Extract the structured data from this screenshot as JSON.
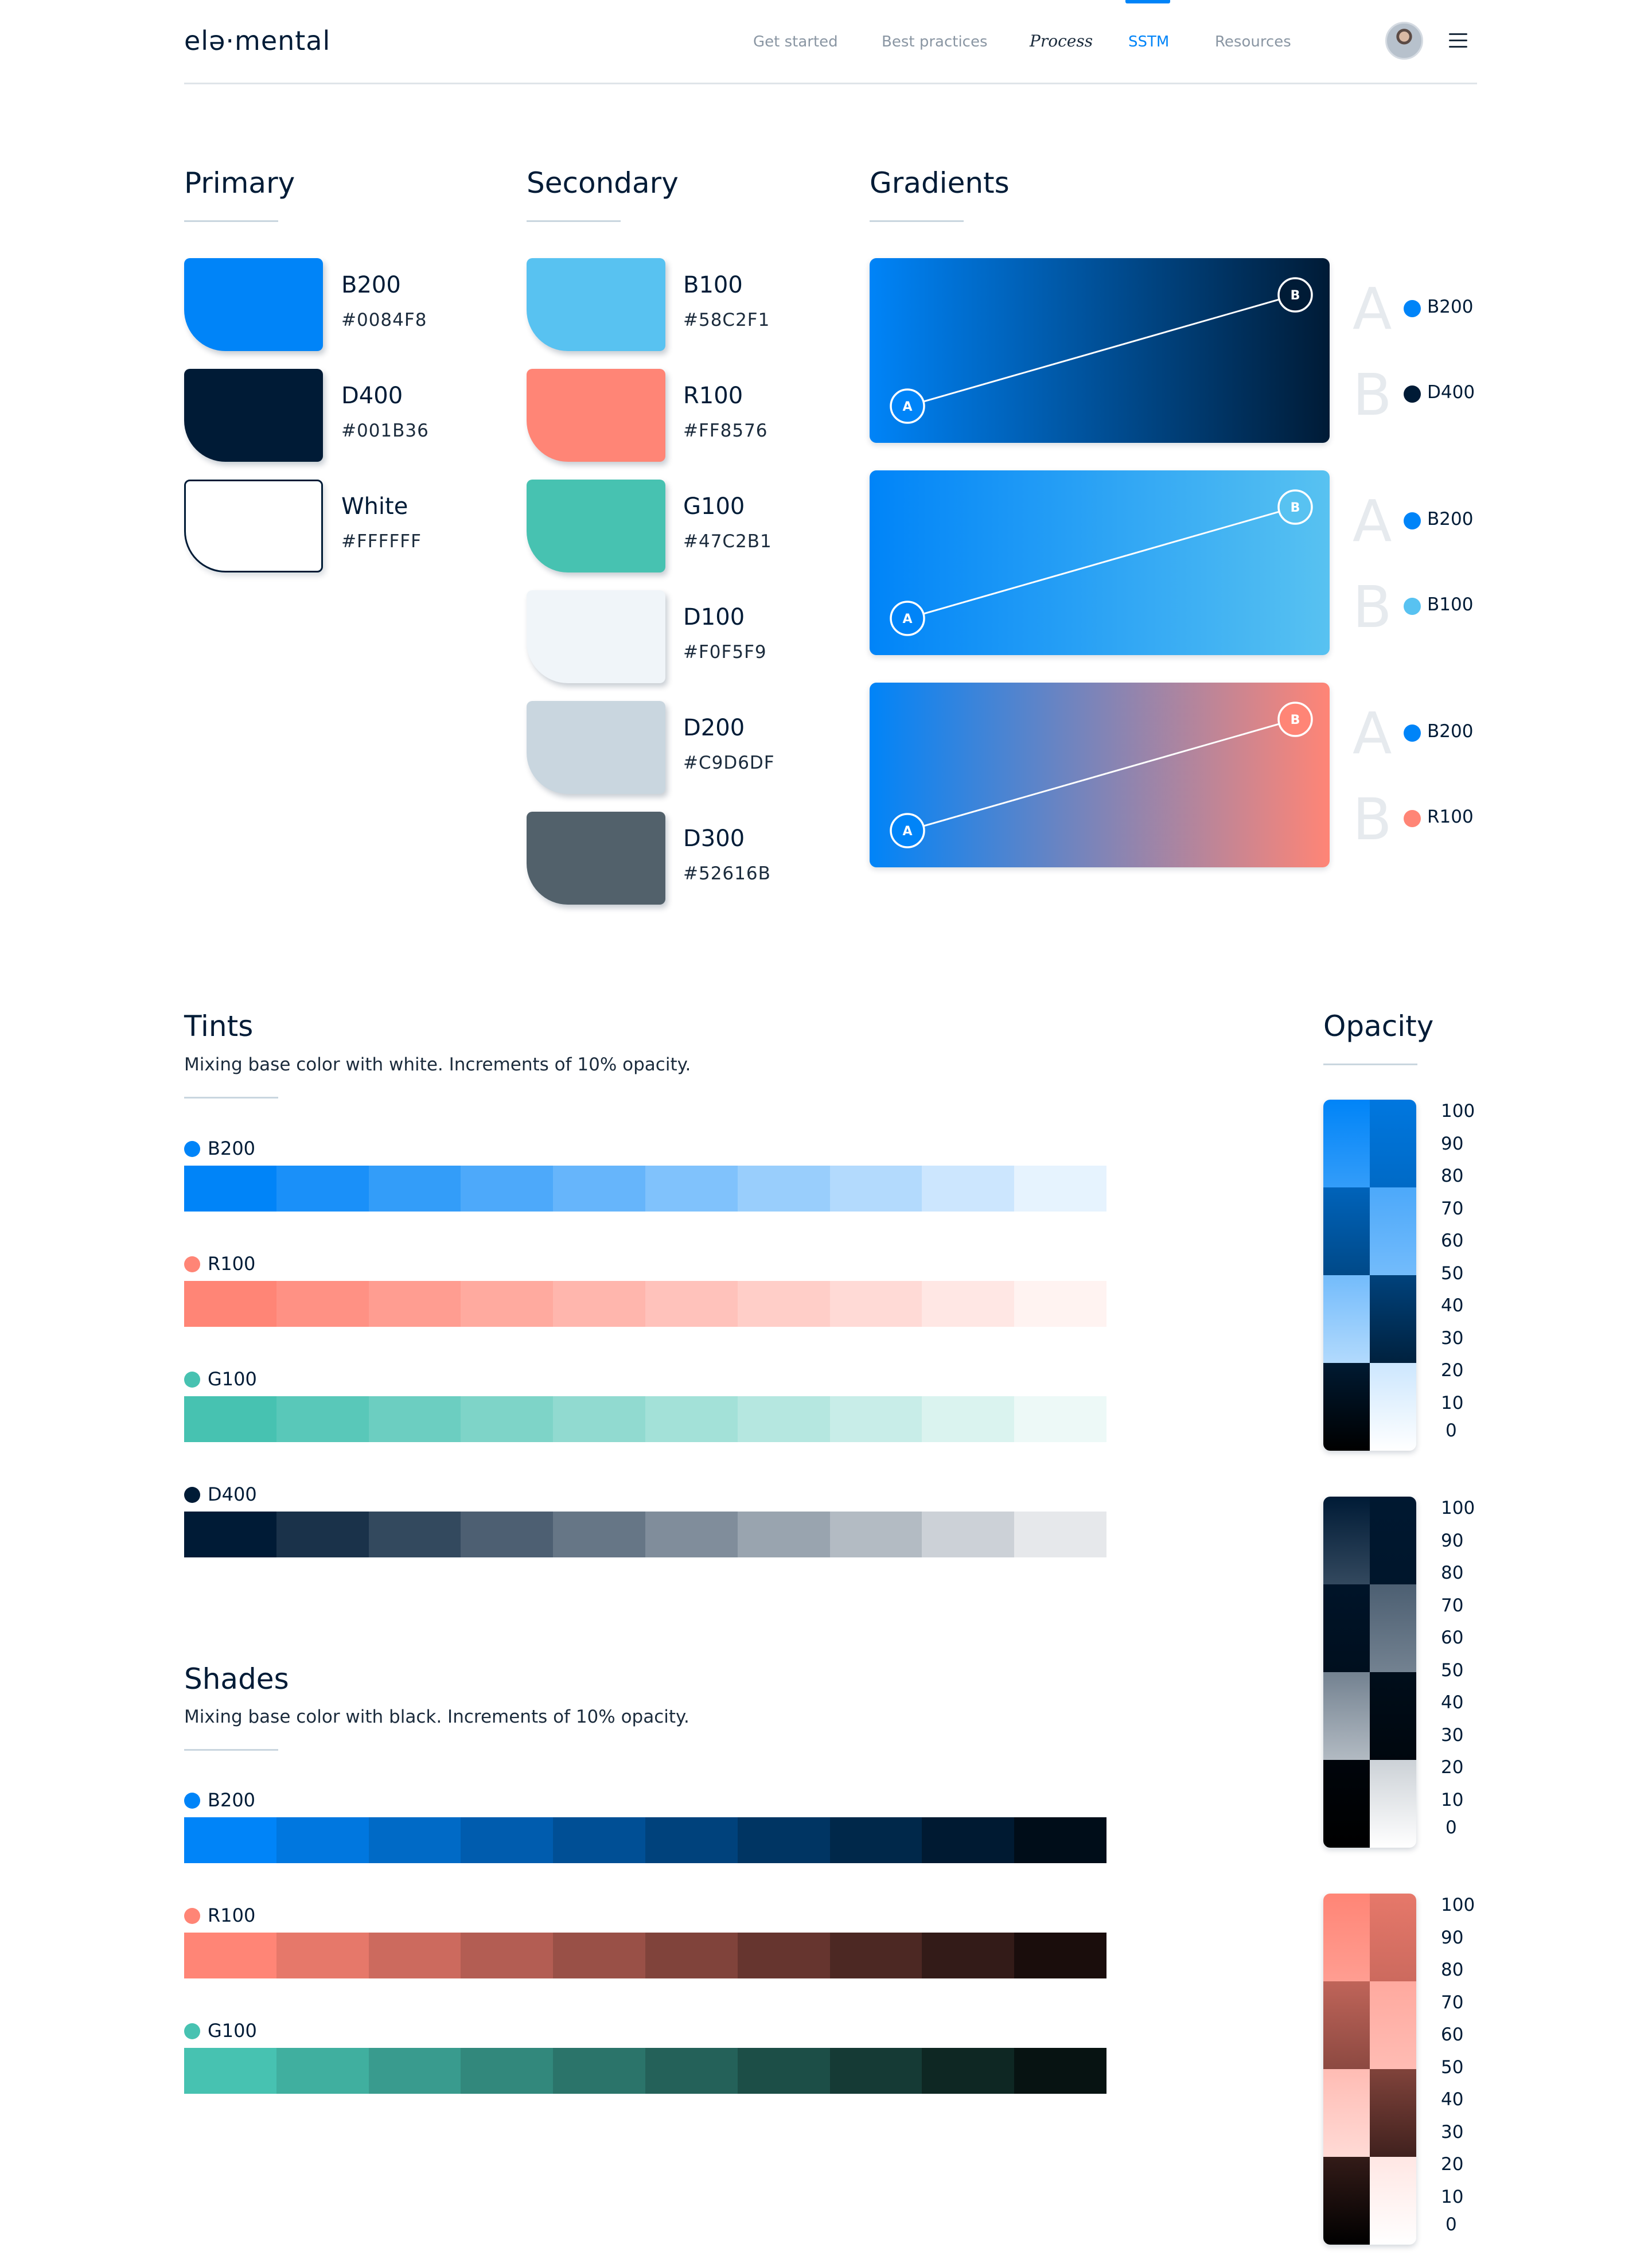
{
  "header": {
    "logo": "elə·mental",
    "nav": [
      {
        "label": "Get started"
      },
      {
        "label": "Best practices"
      },
      {
        "label": "Process"
      },
      {
        "label": "SSTM"
      },
      {
        "label": "Resources"
      }
    ],
    "active_nav": "SSTM"
  },
  "primary": {
    "title": "Primary",
    "swatches": [
      {
        "name": "B200",
        "hex": "#0084F8",
        "color": "#0084F8"
      },
      {
        "name": "D400",
        "hex": "#001B36",
        "color": "#001B36"
      },
      {
        "name": "White",
        "hex": "#FFFFFF",
        "color": "#FFFFFF"
      }
    ]
  },
  "secondary": {
    "title": "Secondary",
    "swatches": [
      {
        "name": "B100",
        "hex": "#58C2F1",
        "color": "#58C2F1"
      },
      {
        "name": "R100",
        "hex": "#FF8576",
        "color": "#FF8576"
      },
      {
        "name": "G100",
        "hex": "#47C2B1",
        "color": "#47C2B1"
      },
      {
        "name": "D100",
        "hex": "#F0F5F9",
        "color": "#F0F5F9"
      },
      {
        "name": "D200",
        "hex": "#C9D6DF",
        "color": "#C9D6DF"
      },
      {
        "name": "D300",
        "hex": "#52616B",
        "color": "#52616B"
      }
    ]
  },
  "gradients": {
    "title": "Gradients",
    "point_a": "A",
    "point_b": "B",
    "items": [
      {
        "a_name": "B200",
        "a_color": "#0084F8",
        "b_name": "D400",
        "b_color": "#001B36"
      },
      {
        "a_name": "B200",
        "a_color": "#0084F8",
        "b_name": "B100",
        "b_color": "#58C2F1"
      },
      {
        "a_name": "B200",
        "a_color": "#0084F8",
        "b_name": "R100",
        "b_color": "#FF8576"
      }
    ]
  },
  "tints": {
    "title": "Tints",
    "description": "Mixing base color with white. Increments of 10% opacity.",
    "rows": [
      {
        "name": "B200",
        "color": "#0084F8"
      },
      {
        "name": "R100",
        "color": "#FF8576"
      },
      {
        "name": "G100",
        "color": "#47C2B1"
      },
      {
        "name": "D400",
        "color": "#001B36"
      }
    ]
  },
  "shades": {
    "title": "Shades",
    "description": "Mixing base color with black. Increments of 10% opacity.",
    "rows": [
      {
        "name": "B200",
        "color": "#0084F8"
      },
      {
        "name": "R100",
        "color": "#FF8576"
      },
      {
        "name": "G100",
        "color": "#47C2B1"
      }
    ]
  },
  "opacity": {
    "title": "Opacity",
    "scale": [
      "100",
      "90",
      "80",
      "70",
      "60",
      "50",
      "40",
      "30",
      "20",
      "10",
      "0"
    ],
    "panels": [
      {
        "color": "#0084F8"
      },
      {
        "color": "#001B36"
      },
      {
        "color": "#FF8576"
      }
    ]
  }
}
